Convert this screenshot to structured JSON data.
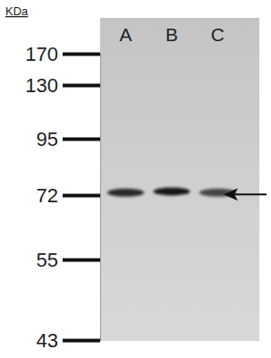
{
  "chart_data": {
    "type": "western_blot",
    "y_label": "KDa",
    "categories": [
      "A",
      "B",
      "C"
    ],
    "values": [
      73,
      73.5,
      73
    ],
    "intensity": [
      0.85,
      0.95,
      0.7
    ],
    "ylim": [
      43,
      170
    ],
    "yticks": [
      170,
      130,
      95,
      72,
      55,
      43
    ]
  }
}
